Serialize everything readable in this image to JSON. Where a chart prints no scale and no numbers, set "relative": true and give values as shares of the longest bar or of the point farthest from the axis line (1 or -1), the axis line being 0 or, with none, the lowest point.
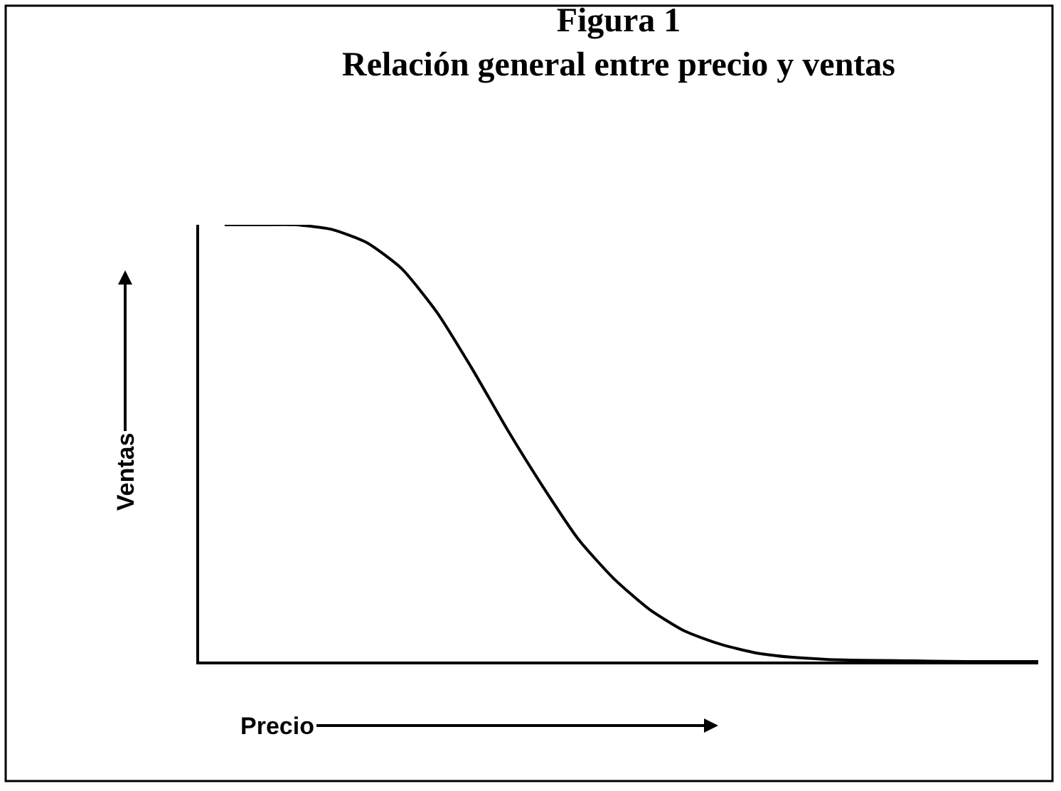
{
  "chart_data": {
    "type": "line",
    "title": "Figura 1",
    "subtitle": "Relación general entre precio y ventas",
    "xlabel": "Precio",
    "ylabel": "Ventas",
    "relative": true,
    "categories": [
      null,
      null,
      null,
      null,
      null,
      null,
      null,
      null,
      null,
      null,
      null,
      null,
      null,
      null,
      null,
      null,
      null,
      null,
      null,
      null,
      null,
      null,
      null,
      null
    ],
    "series": [
      {
        "color": "#000000",
        "values": [
          1,
          1,
          1,
          0.99,
          0.96,
          0.9,
          0.8,
          0.67,
          0.53,
          0.4,
          0.28,
          0.19,
          0.12,
          0.07,
          0.04,
          0.02,
          0.01,
          0.005,
          0.003,
          0.002,
          0.001,
          0,
          0,
          0
        ]
      }
    ]
  }
}
